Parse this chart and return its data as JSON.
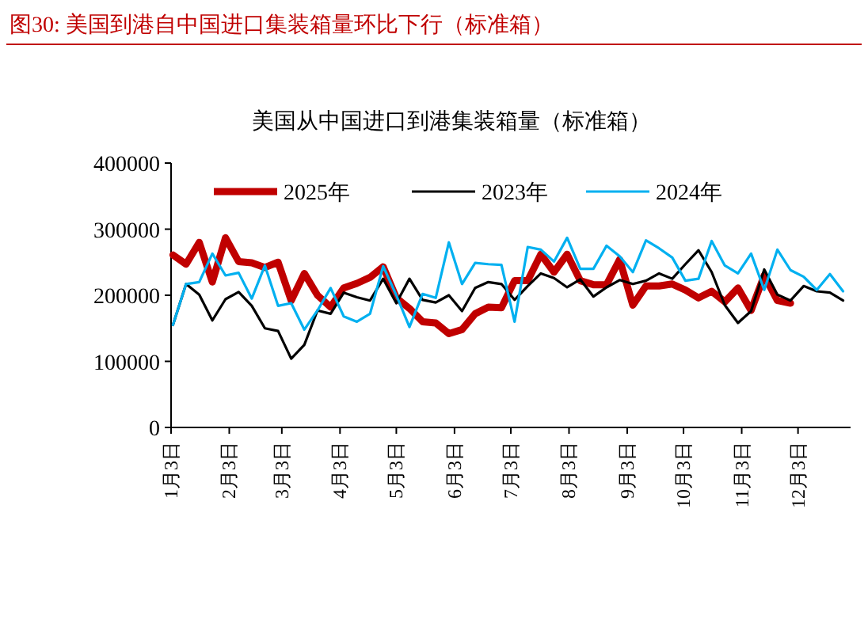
{
  "chart_data": {
    "type": "line",
    "title": "图30:  美国到港自中国进口集装箱量环比下行（标准箱）",
    "subtitle": "美国从中国进口到港集装箱量（标准箱）",
    "x": [
      "--01-04",
      "--01-11",
      "--01-18",
      "--01-25",
      "--02-01",
      "--02-08",
      "--02-15",
      "--02-22",
      "--03-01",
      "--03-08",
      "--03-15",
      "--03-22",
      "--03-29",
      "--04-05",
      "--04-12",
      "--04-19",
      "--04-26",
      "--05-03",
      "--05-10",
      "--05-17",
      "--05-24",
      "--05-31",
      "--06-07",
      "--06-14",
      "--06-21",
      "--06-28",
      "--07-05",
      "--07-12",
      "--07-19",
      "--07-26",
      "--08-02",
      "--08-09",
      "--08-16",
      "--08-23",
      "--08-30",
      "--09-06",
      "--09-13",
      "--09-20",
      "--09-27",
      "--10-04",
      "--10-11",
      "--10-18",
      "--10-25",
      "--11-01",
      "--11-08",
      "--11-15",
      "--11-22",
      "--11-29",
      "--12-06",
      "--12-13",
      "--12-20",
      "--12-27"
    ],
    "series": [
      {
        "name": "2025年",
        "color": "#c00000",
        "values": [
          261000,
          247000,
          280000,
          220000,
          287000,
          251000,
          249000,
          242000,
          250000,
          192000,
          233000,
          200000,
          182000,
          211000,
          218000,
          227000,
          243000,
          196000,
          180000,
          160000,
          158000,
          142000,
          148000,
          172000,
          182000,
          181000,
          222000,
          222000,
          262000,
          235000,
          262000,
          222000,
          216000,
          216000,
          254000,
          185000,
          214000,
          214000,
          217000,
          208000,
          196000,
          206000,
          190000,
          211000,
          177000,
          230000,
          192000,
          188000,
          null,
          null,
          null,
          null
        ]
      },
      {
        "name": "2023年",
        "color": "#000000",
        "values": [
          155000,
          217000,
          201000,
          162000,
          194000,
          205000,
          184000,
          150000,
          146000,
          104000,
          125000,
          177000,
          172000,
          204000,
          197000,
          192000,
          225000,
          188000,
          225000,
          193000,
          189000,
          200000,
          176000,
          211000,
          220000,
          217000,
          193000,
          214000,
          233000,
          226000,
          212000,
          224000,
          198000,
          212000,
          223000,
          217000,
          222000,
          233000,
          225000,
          247000,
          268000,
          235000,
          185000,
          158000,
          176000,
          239000,
          201000,
          192000,
          214000,
          206000,
          204000,
          192000
        ]
      },
      {
        "name": "2024年",
        "color": "#00b0f0",
        "values": [
          155000,
          217000,
          220000,
          263000,
          230000,
          234000,
          195000,
          245000,
          184000,
          188000,
          148000,
          177000,
          211000,
          168000,
          160000,
          172000,
          244000,
          200000,
          152000,
          202000,
          196000,
          280000,
          217000,
          249000,
          247000,
          246000,
          160000,
          273000,
          269000,
          251000,
          287000,
          240000,
          240000,
          275000,
          259000,
          235000,
          283000,
          271000,
          257000,
          222000,
          225000,
          282000,
          245000,
          233000,
          263000,
          208000,
          269000,
          238000,
          228000,
          208000,
          232000,
          206000
        ]
      }
    ],
    "xlim": [
      "--01-03",
      "--12-31"
    ],
    "xticks": [
      {
        "value": "--01-03",
        "label": "1月3日"
      },
      {
        "value": "--02-03",
        "label": "2月3日"
      },
      {
        "value": "--03-03",
        "label": "3月3日"
      },
      {
        "value": "--04-03",
        "label": "4月3日"
      },
      {
        "value": "--05-03",
        "label": "5月3日"
      },
      {
        "value": "--06-03",
        "label": "6月3日"
      },
      {
        "value": "--07-03",
        "label": "7月3日"
      },
      {
        "value": "--08-03",
        "label": "8月3日"
      },
      {
        "value": "--09-03",
        "label": "9月3日"
      },
      {
        "value": "--10-03",
        "label": "10月3日"
      },
      {
        "value": "--11-03",
        "label": "11月3日"
      },
      {
        "value": "--12-03",
        "label": "12月3日"
      }
    ],
    "ylim": [
      0,
      400000
    ],
    "yticks": [
      0,
      100000,
      200000,
      300000,
      400000
    ],
    "legend": "top",
    "grid": false,
    "marker": "none",
    "line_style": "solid"
  }
}
